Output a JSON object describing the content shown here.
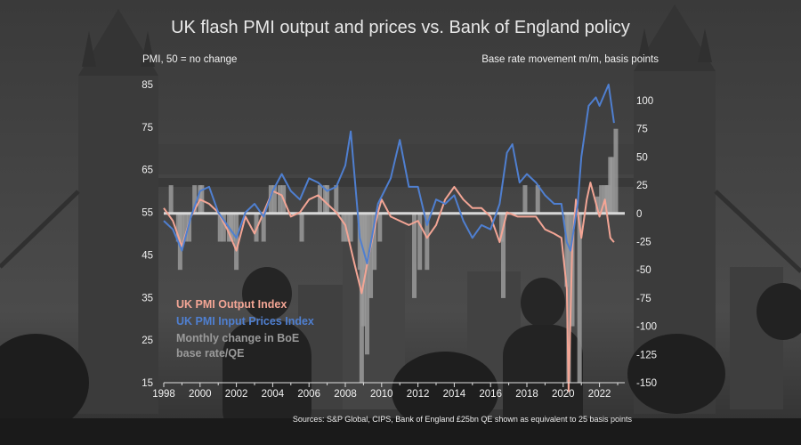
{
  "header": {
    "title": "UK flash PMI output and prices vs. Bank of England policy",
    "left_axis_title": "PMI, 50 = no change",
    "right_axis_title": "Base rate movement m/m, basis points"
  },
  "legend": {
    "items": [
      {
        "label": "UK PMI Output Index",
        "color": "#f3a595"
      },
      {
        "label": "UK PMI Input Prices Index",
        "color": "#4f7fd0"
      },
      {
        "label": "Monthly change in BoE base rate/QE",
        "color": "#9a9a9a"
      }
    ]
  },
  "footer": {
    "source": "Sources: S&P Global, CIPS, Bank of England £25bn QE shown as equivalent to 25 basis points"
  },
  "chart_data": {
    "type": "line",
    "title": "UK flash PMI output and prices vs. Bank of England policy",
    "x_ticks": [
      "1998",
      "2000",
      "2002",
      "2004",
      "2006",
      "2008",
      "2010",
      "2012",
      "2014",
      "2016",
      "2018",
      "2020",
      "2022"
    ],
    "xlim": [
      1998,
      2023
    ],
    "left_axis": {
      "label": "PMI, 50 = no change",
      "ylim": [
        15,
        85
      ],
      "ticks": [
        "15",
        "25",
        "35",
        "45",
        "55",
        "65",
        "75",
        "85"
      ]
    },
    "right_axis": {
      "label": "Base rate movement m/m, basis points",
      "ylim": [
        -150,
        125
      ],
      "ticks": [
        "-150",
        "-125",
        "-100",
        "-75",
        "-50",
        "-25",
        "0",
        "25",
        "50",
        "75",
        "100"
      ]
    },
    "grid": false,
    "legend_position": "bottom-left",
    "series": [
      {
        "name": "UK PMI Output Index",
        "axis": "left",
        "color": "#f3a595",
        "points": [
          [
            1998.0,
            56
          ],
          [
            1998.5,
            53
          ],
          [
            1999.0,
            47
          ],
          [
            1999.5,
            54
          ],
          [
            2000.0,
            58
          ],
          [
            2000.5,
            57
          ],
          [
            2001.0,
            55
          ],
          [
            2001.5,
            51
          ],
          [
            2002.0,
            46
          ],
          [
            2002.5,
            54
          ],
          [
            2003.0,
            50
          ],
          [
            2003.5,
            55
          ],
          [
            2004.0,
            60
          ],
          [
            2004.5,
            59
          ],
          [
            2005.0,
            54
          ],
          [
            2005.5,
            55
          ],
          [
            2006.0,
            58
          ],
          [
            2006.5,
            59
          ],
          [
            2007.0,
            57
          ],
          [
            2007.5,
            55
          ],
          [
            2008.0,
            52
          ],
          [
            2008.5,
            43
          ],
          [
            2008.9,
            36
          ],
          [
            2009.3,
            45
          ],
          [
            2009.8,
            55
          ],
          [
            2010.0,
            58
          ],
          [
            2010.5,
            54
          ],
          [
            2011.0,
            53
          ],
          [
            2011.5,
            52
          ],
          [
            2012.0,
            53
          ],
          [
            2012.5,
            49
          ],
          [
            2013.0,
            52
          ],
          [
            2013.5,
            58
          ],
          [
            2014.0,
            61
          ],
          [
            2014.5,
            58
          ],
          [
            2015.0,
            56
          ],
          [
            2015.5,
            56
          ],
          [
            2016.0,
            54
          ],
          [
            2016.5,
            48
          ],
          [
            2016.9,
            55
          ],
          [
            2017.5,
            54
          ],
          [
            2018.0,
            54
          ],
          [
            2018.5,
            54
          ],
          [
            2019.0,
            51
          ],
          [
            2019.5,
            50
          ],
          [
            2019.9,
            49
          ],
          [
            2020.2,
            37
          ],
          [
            2020.3,
            13
          ],
          [
            2020.5,
            47
          ],
          [
            2020.7,
            58
          ],
          [
            2021.0,
            49
          ],
          [
            2021.3,
            58
          ],
          [
            2021.5,
            62
          ],
          [
            2022.0,
            54
          ],
          [
            2022.3,
            58
          ],
          [
            2022.6,
            49
          ],
          [
            2022.8,
            48
          ]
        ]
      },
      {
        "name": "UK PMI Input Prices Index",
        "axis": "left",
        "color": "#4f7fd0",
        "points": [
          [
            1998.0,
            53
          ],
          [
            1998.5,
            51
          ],
          [
            1999.0,
            46
          ],
          [
            1999.5,
            54
          ],
          [
            2000.0,
            60
          ],
          [
            2000.5,
            61
          ],
          [
            2001.0,
            55
          ],
          [
            2001.5,
            52
          ],
          [
            2002.0,
            49
          ],
          [
            2002.5,
            55
          ],
          [
            2003.0,
            57
          ],
          [
            2003.5,
            54
          ],
          [
            2004.0,
            60
          ],
          [
            2004.5,
            64
          ],
          [
            2005.0,
            60
          ],
          [
            2005.5,
            58
          ],
          [
            2006.0,
            63
          ],
          [
            2006.5,
            62
          ],
          [
            2007.0,
            60
          ],
          [
            2007.5,
            61
          ],
          [
            2008.0,
            66
          ],
          [
            2008.3,
            74
          ],
          [
            2008.8,
            49
          ],
          [
            2009.2,
            43
          ],
          [
            2009.8,
            57
          ],
          [
            2010.5,
            63
          ],
          [
            2011.0,
            72
          ],
          [
            2011.5,
            61
          ],
          [
            2012.0,
            61
          ],
          [
            2012.5,
            52
          ],
          [
            2013.0,
            58
          ],
          [
            2013.5,
            57
          ],
          [
            2014.0,
            59
          ],
          [
            2014.5,
            53
          ],
          [
            2015.0,
            49
          ],
          [
            2015.5,
            52
          ],
          [
            2016.0,
            51
          ],
          [
            2016.5,
            57
          ],
          [
            2016.9,
            69
          ],
          [
            2017.2,
            71
          ],
          [
            2017.6,
            62
          ],
          [
            2018.0,
            64
          ],
          [
            2018.5,
            62
          ],
          [
            2019.0,
            59
          ],
          [
            2019.5,
            57
          ],
          [
            2019.9,
            57
          ],
          [
            2020.2,
            48
          ],
          [
            2020.4,
            46
          ],
          [
            2020.8,
            57
          ],
          [
            2021.0,
            68
          ],
          [
            2021.4,
            80
          ],
          [
            2021.8,
            82
          ],
          [
            2022.0,
            80
          ],
          [
            2022.5,
            85
          ],
          [
            2022.8,
            76
          ]
        ]
      },
      {
        "name": "Monthly change in BoE base rate/QE",
        "axis": "right",
        "type": "bar",
        "color": "#9a9a9a",
        "points": [
          [
            1998.4,
            25
          ],
          [
            1998.8,
            -25
          ],
          [
            1998.9,
            -50
          ],
          [
            1999.0,
            -25
          ],
          [
            1999.2,
            -25
          ],
          [
            1999.4,
            -25
          ],
          [
            1999.7,
            25
          ],
          [
            2000.0,
            25
          ],
          [
            2000.1,
            25
          ],
          [
            2001.1,
            -25
          ],
          [
            2001.3,
            -25
          ],
          [
            2001.6,
            -25
          ],
          [
            2001.7,
            -25
          ],
          [
            2001.8,
            -25
          ],
          [
            2002.0,
            -50
          ],
          [
            2003.1,
            -25
          ],
          [
            2003.5,
            -25
          ],
          [
            2003.9,
            25
          ],
          [
            2004.1,
            25
          ],
          [
            2004.4,
            25
          ],
          [
            2004.6,
            25
          ],
          [
            2005.6,
            -25
          ],
          [
            2006.6,
            25
          ],
          [
            2006.9,
            25
          ],
          [
            2007.0,
            25
          ],
          [
            2007.5,
            25
          ],
          [
            2007.9,
            -25
          ],
          [
            2008.1,
            -25
          ],
          [
            2008.3,
            -25
          ],
          [
            2008.8,
            -50
          ],
          [
            2008.9,
            -150
          ],
          [
            2009.0,
            -100
          ],
          [
            2009.1,
            -50
          ],
          [
            2009.2,
            -125
          ],
          [
            2009.4,
            -75
          ],
          [
            2009.6,
            -50
          ],
          [
            2009.9,
            -25
          ],
          [
            2011.8,
            -75
          ],
          [
            2012.1,
            -50
          ],
          [
            2012.5,
            -50
          ],
          [
            2016.6,
            -25
          ],
          [
            2016.7,
            -75
          ],
          [
            2017.9,
            25
          ],
          [
            2018.6,
            25
          ],
          [
            2020.2,
            -65
          ],
          [
            2020.3,
            -150
          ],
          [
            2020.5,
            -100
          ],
          [
            2020.9,
            -150
          ],
          [
            2021.9,
            15
          ],
          [
            2022.1,
            25
          ],
          [
            2022.3,
            25
          ],
          [
            2022.4,
            25
          ],
          [
            2022.5,
            25
          ],
          [
            2022.6,
            50
          ],
          [
            2022.7,
            50
          ],
          [
            2022.9,
            75
          ]
        ]
      }
    ]
  }
}
